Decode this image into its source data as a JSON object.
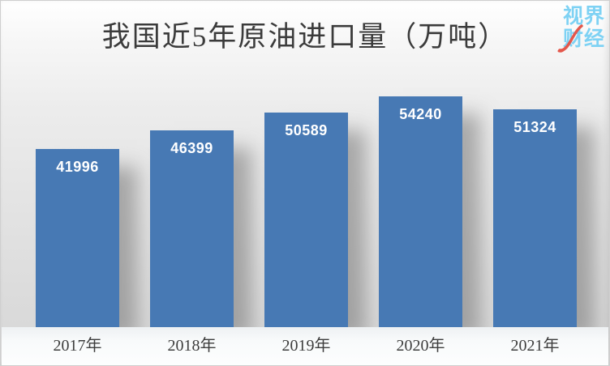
{
  "logo": {
    "line1": "视界",
    "line2": "财经",
    "text_color": "#7ed2f4",
    "swoosh_color": "#e4574b"
  },
  "chart_data": {
    "type": "bar",
    "title": "我国近5年原油进口量（万吨）",
    "categories": [
      "2017年",
      "2018年",
      "2019年",
      "2020年",
      "2021年"
    ],
    "values": [
      41996,
      46399,
      50589,
      54240,
      51324
    ],
    "xlabel": "",
    "ylabel": "",
    "ylim": [
      0,
      57000
    ],
    "grid": false,
    "legend": "none",
    "value_labels_position": "inside-top",
    "bar_color": "#4779b4",
    "value_label_color": "#ffffff"
  }
}
